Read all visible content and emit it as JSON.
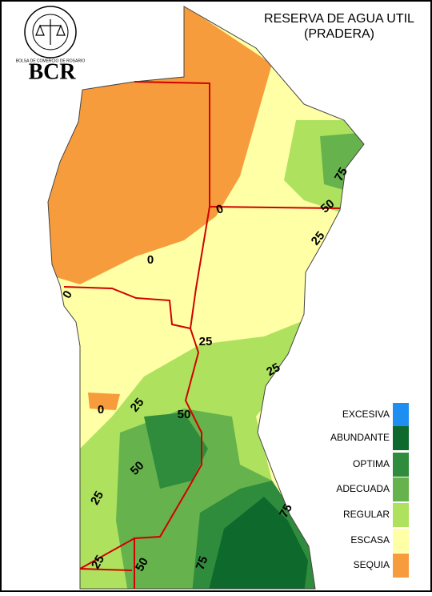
{
  "header": {
    "logo_ring": "BOLSA DE COMERCIO DE ROSARIO",
    "logo": "BCR",
    "title": "RESERVA DE AGUA UTIL",
    "subtitle": "(PRADERA)"
  },
  "legend": [
    {
      "label": "EXCESIVA",
      "color": "#1e8ff0"
    },
    {
      "label": "ABUNDANTE",
      "color": "#0e6a2c"
    },
    {
      "label": "OPTIMA",
      "color": "#2f8c3c"
    },
    {
      "label": "ADECUADA",
      "color": "#66b24c"
    },
    {
      "label": "REGULAR",
      "color": "#aee25e"
    },
    {
      "label": "ESCASA",
      "color": "#ffffa6"
    },
    {
      "label": "SEQUIA",
      "color": "#f79c3c"
    }
  ],
  "contour_labels": [
    "75",
    "50",
    "25",
    "0",
    "0",
    "0",
    "25",
    "25",
    "0",
    "25",
    "50",
    "50",
    "25",
    "75",
    "25",
    "50",
    "75"
  ]
}
